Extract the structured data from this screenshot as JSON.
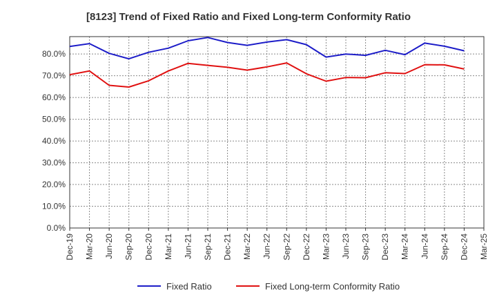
{
  "chart_data": {
    "type": "line",
    "title": "[8123]  Trend of Fixed Ratio and Fixed Long-term Conformity Ratio",
    "xlabel": "",
    "ylabel": "",
    "categories": [
      "Dec-19",
      "Mar-20",
      "Jun-20",
      "Sep-20",
      "Dec-20",
      "Mar-21",
      "Jun-21",
      "Sep-21",
      "Dec-21",
      "Mar-22",
      "Jun-22",
      "Sep-22",
      "Dec-22",
      "Mar-23",
      "Jun-23",
      "Sep-23",
      "Dec-23",
      "Mar-24",
      "Jun-24",
      "Sep-24",
      "Dec-24",
      "Mar-25"
    ],
    "ylim": [
      0,
      88
    ],
    "yticks": [
      0,
      10,
      20,
      30,
      40,
      50,
      60,
      70,
      80
    ],
    "ytick_labels": [
      "0.0%",
      "10.0%",
      "20.0%",
      "30.0%",
      "40.0%",
      "50.0%",
      "60.0%",
      "70.0%",
      "80.0%"
    ],
    "grid": true,
    "legend_position": "bottom",
    "series": [
      {
        "name": "Fixed Ratio",
        "color": "#1c1cc8",
        "values": [
          83.5,
          84.8,
          80.3,
          77.8,
          80.8,
          82.7,
          86.1,
          87.6,
          85.3,
          84.0,
          85.5,
          86.6,
          84.3,
          78.6,
          80.0,
          79.4,
          81.7,
          79.7,
          85.0,
          83.6,
          81.5,
          null
        ]
      },
      {
        "name": "Fixed Long-term Conformity Ratio",
        "color": "#e01010",
        "values": [
          70.5,
          72.2,
          65.6,
          64.8,
          67.7,
          72.2,
          75.7,
          74.8,
          73.9,
          72.6,
          74.1,
          75.9,
          70.9,
          67.5,
          69.2,
          69.1,
          71.4,
          71.0,
          75.1,
          75.0,
          73.1,
          null
        ]
      }
    ]
  }
}
